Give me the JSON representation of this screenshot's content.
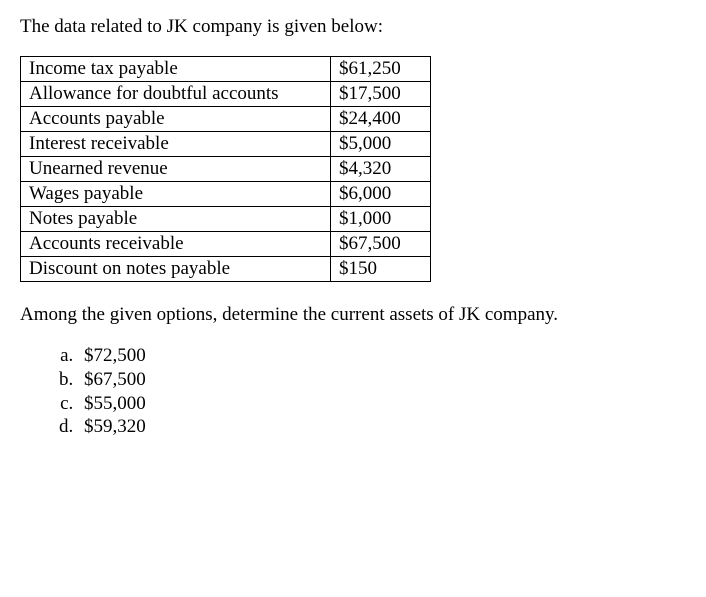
{
  "intro": "The data related to JK company is given below:",
  "table": {
    "rows": [
      {
        "label": "Income tax payable",
        "value": "$61,250"
      },
      {
        "label": "Allowance for doubtful accounts",
        "value": "$17,500"
      },
      {
        "label": "Accounts payable",
        "value": "$24,400"
      },
      {
        "label": "Interest receivable",
        "value": "$5,000"
      },
      {
        "label": "Unearned revenue",
        "value": "$4,320"
      },
      {
        "label": "Wages payable",
        "value": "$6,000"
      },
      {
        "label": "Notes payable",
        "value": "$1,000"
      },
      {
        "label": "Accounts receivable",
        "value": "$67,500"
      },
      {
        "label": "Discount on notes payable",
        "value": "$150"
      }
    ]
  },
  "question": "Among the given options, determine the current assets of JK company.",
  "options": [
    "$72,500",
    "$67,500",
    "$55,000",
    "$59,320"
  ]
}
